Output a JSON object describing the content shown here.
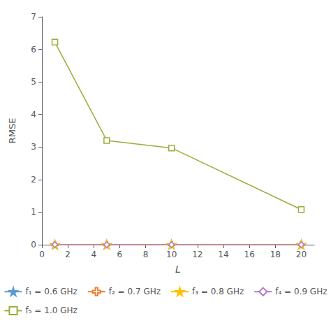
{
  "chart_data": {
    "type": "line",
    "x": [
      1,
      5,
      10,
      20
    ],
    "series": [
      {
        "name": "f₁ = 0.6 GHz",
        "color": "#5b9bd5",
        "marker": "star",
        "values": [
          0.0,
          0.0,
          0.0,
          0.0
        ]
      },
      {
        "name": "f₂ = 0.7 GHz",
        "color": "#ed7d31",
        "marker": "plus-open",
        "values": [
          0.0,
          0.0,
          0.0,
          0.0
        ]
      },
      {
        "name": "f₃ = 0.8 GHz",
        "color": "#ffc000",
        "marker": "star",
        "values": [
          0.0,
          0.0,
          0.0,
          0.0
        ]
      },
      {
        "name": "f₄ = 0.9 GHz",
        "color": "#b07cc6",
        "marker": "diamond-open",
        "values": [
          0.0,
          0.0,
          0.0,
          0.0
        ]
      },
      {
        "name": "f₅ = 1.0 GHz",
        "color": "#9aad3b",
        "marker": "square-open",
        "values": [
          6.22,
          3.2,
          2.97,
          1.08
        ]
      }
    ],
    "xlabel": "L",
    "ylabel": "RMSE",
    "xlim": [
      0,
      21
    ],
    "ylim": [
      0,
      7
    ],
    "xticks": [
      0,
      2,
      4,
      6,
      8,
      10,
      12,
      14,
      16,
      18,
      20
    ],
    "yticks": [
      0,
      1,
      2,
      3,
      4,
      5,
      6,
      7
    ],
    "grid": false,
    "legend": "bottom"
  }
}
